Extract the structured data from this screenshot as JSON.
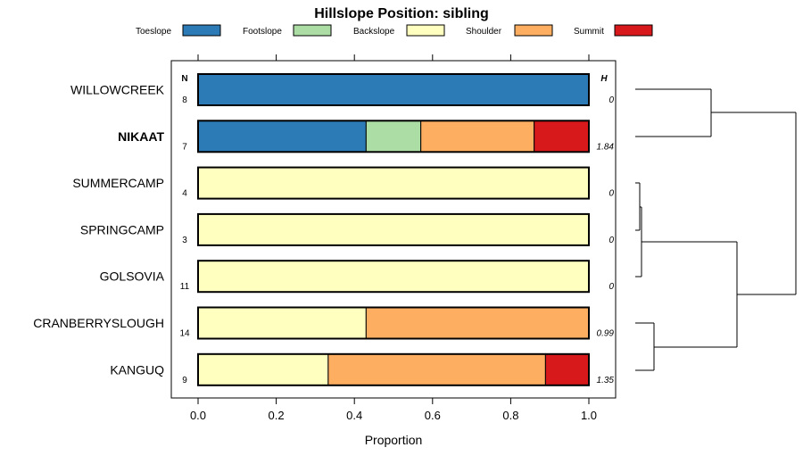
{
  "chart_data": {
    "type": "bar",
    "orientation": "horizontal",
    "stacked": true,
    "title": "Hillslope Position: sibling",
    "xlabel": "Proportion",
    "xlim": [
      0,
      1
    ],
    "x_ticks": [
      "0.0",
      "0.2",
      "0.4",
      "0.6",
      "0.8",
      "1.0"
    ],
    "n_header": "N",
    "h_header": "H",
    "legend_position": "top",
    "series": [
      {
        "name": "Toeslope",
        "color": "#2C7BB6"
      },
      {
        "name": "Footslope",
        "color": "#ABDDA4"
      },
      {
        "name": "Backslope",
        "color": "#FFFFBF"
      },
      {
        "name": "Shoulder",
        "color": "#FDAE61"
      },
      {
        "name": "Summit",
        "color": "#D7191C"
      }
    ],
    "rows": [
      {
        "label": "WILLOWCREEK",
        "bold": false,
        "n": "8",
        "h": "0",
        "values": [
          1.0,
          0,
          0,
          0,
          0
        ]
      },
      {
        "label": "NIKAAT",
        "bold": true,
        "n": "7",
        "h": "1.84",
        "values": [
          0.43,
          0.14,
          0,
          0.29,
          0.14
        ]
      },
      {
        "label": "SUMMERCAMP",
        "bold": false,
        "n": "4",
        "h": "0",
        "values": [
          0,
          0,
          1.0,
          0,
          0
        ]
      },
      {
        "label": "SPRINGCAMP",
        "bold": false,
        "n": "3",
        "h": "0",
        "values": [
          0,
          0,
          1.0,
          0,
          0
        ]
      },
      {
        "label": "GOLSOVIA",
        "bold": false,
        "n": "11",
        "h": "0",
        "values": [
          0,
          0,
          1.0,
          0,
          0
        ]
      },
      {
        "label": "CRANBERRYSLOUGH",
        "bold": false,
        "n": "14",
        "h": "0.99",
        "values": [
          0,
          0,
          0.43,
          0.57,
          0
        ]
      },
      {
        "label": "KANGUQ",
        "bold": false,
        "n": "9",
        "h": "1.35",
        "values": [
          0,
          0,
          0.333,
          0.556,
          0.111
        ]
      }
    ],
    "dendrogram": {
      "description": "hierarchical clustering of rows",
      "merges": [
        {
          "left": "SUMMERCAMP",
          "right": "SPRINGCAMP",
          "height": 0.02
        },
        {
          "left": "SUMMERCAMP+SPRINGCAMP",
          "right": "GOLSOVIA",
          "height": 0.04
        },
        {
          "left": "CRANBERRYSLOUGH",
          "right": "KANGUQ",
          "height": 0.17
        },
        {
          "left": "WILLOWCREEK",
          "right": "NIKAAT",
          "height": 0.48
        },
        {
          "left": "SUMMERCAMP+SPRINGCAMP+GOLSOVIA",
          "right": "CRANBERRYSLOUGH+KANGUQ",
          "height": 0.64
        },
        {
          "left": "WILLOWCREEK+NIKAAT",
          "right": "rest",
          "height": 1.0
        }
      ]
    }
  }
}
